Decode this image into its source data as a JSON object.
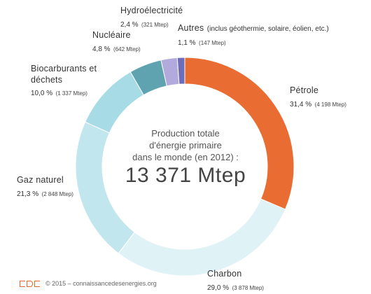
{
  "chart_data": {
    "type": "pie",
    "variant": "donut",
    "center": {
      "caption_lines": [
        "Production totale",
        "d'énergie primaire",
        "dans le monde (en 2012) :"
      ],
      "total": "13 371 Mtep"
    },
    "slices": [
      {
        "name": "Pétrole",
        "percent": 31.4,
        "percent_label": "31,4 %",
        "value_label": "(4 198 Mtep)",
        "value": 4198,
        "color": "#e96c32"
      },
      {
        "name": "Charbon",
        "percent": 29.0,
        "percent_label": "29,0 %",
        "value_label": "(3 878 Mtep)",
        "value": 3878,
        "color": "#dff2f6"
      },
      {
        "name": "Gaz naturel",
        "percent": 21.3,
        "percent_label": "21,3 %",
        "value_label": "(2 848 Mtep)",
        "value": 2848,
        "color": "#c2e6ee"
      },
      {
        "name": "Biocarburants et déchets",
        "percent": 10.0,
        "percent_label": "10,0 %",
        "value_label": "(1 337 Mtep)",
        "value": 1337,
        "color": "#a7dbe6"
      },
      {
        "name": "Nucléaire",
        "percent": 4.8,
        "percent_label": "4,8 %",
        "value_label": "(642 Mtep)",
        "value": 642,
        "color": "#5ea3af"
      },
      {
        "name": "Hydroélectricité",
        "percent": 2.4,
        "percent_label": "2,4 %",
        "value_label": "(321 Mtep)",
        "value": 321,
        "color": "#b2a9dd"
      },
      {
        "name": "Autres",
        "name_suffix": "(inclus géothermie, solaire, éolien, etc.)",
        "percent": 1.1,
        "percent_label": "1,1 %",
        "value_label": "(147 Mtep)",
        "value": 147,
        "color": "#6f6db9"
      }
    ]
  },
  "footer": {
    "copyright": "© 2015 – connaissancedesenergies.org"
  }
}
